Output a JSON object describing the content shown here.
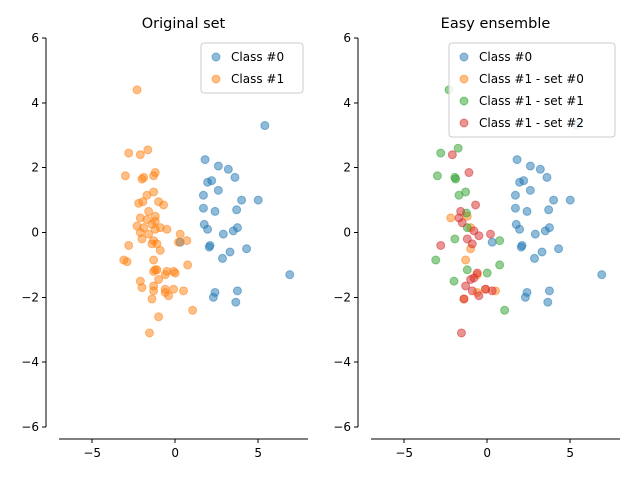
{
  "chart_data": [
    {
      "type": "scatter",
      "title": "Original set",
      "xlabel": "",
      "ylabel": "",
      "xlim": [
        -7,
        8
      ],
      "ylim": [
        -6,
        6
      ],
      "xticks": [
        -5,
        0,
        5
      ],
      "yticks": [
        -6,
        -4,
        -2,
        0,
        2,
        4,
        6
      ],
      "grid": false,
      "legend_position": "top-right",
      "series": [
        {
          "name": "Class #0",
          "color": "#1f77b4",
          "points": [
            [
              5.4,
              3.3
            ],
            [
              2.6,
              2.05
            ],
            [
              1.8,
              2.25
            ],
            [
              3.2,
              1.95
            ],
            [
              2.2,
              1.6
            ],
            [
              1.95,
              1.55
            ],
            [
              3.6,
              1.7
            ],
            [
              2.6,
              1.3
            ],
            [
              1.7,
              1.15
            ],
            [
              4.0,
              1.0
            ],
            [
              5.0,
              1.0
            ],
            [
              1.7,
              0.75
            ],
            [
              2.4,
              0.65
            ],
            [
              3.7,
              0.7
            ],
            [
              1.75,
              0.25
            ],
            [
              1.95,
              0.1
            ],
            [
              3.75,
              0.15
            ],
            [
              2.9,
              -0.05
            ],
            [
              3.5,
              0.05
            ],
            [
              0.3,
              -0.3
            ],
            [
              2.1,
              -0.4
            ],
            [
              2.05,
              -0.45
            ],
            [
              4.3,
              -0.5
            ],
            [
              3.3,
              -0.6
            ],
            [
              2.85,
              -0.8
            ],
            [
              6.9,
              -1.3
            ],
            [
              3.75,
              -1.8
            ],
            [
              2.4,
              -1.85
            ],
            [
              2.3,
              -2.0
            ],
            [
              3.65,
              -2.15
            ]
          ]
        },
        {
          "name": "Class #1",
          "color": "#ff7f0e",
          "points": [
            [
              -2.3,
              4.4
            ],
            [
              -1.65,
              2.55
            ],
            [
              -2.8,
              2.45
            ],
            [
              -2.1,
              2.4
            ],
            [
              -1.2,
              1.85
            ],
            [
              -1.3,
              1.75
            ],
            [
              -3.0,
              1.75
            ],
            [
              -2.0,
              1.65
            ],
            [
              -1.9,
              1.7
            ],
            [
              -1.3,
              1.25
            ],
            [
              -1.7,
              1.15
            ],
            [
              -1.0,
              0.95
            ],
            [
              -1.95,
              0.95
            ],
            [
              -2.2,
              0.9
            ],
            [
              -0.7,
              0.85
            ],
            [
              -1.6,
              0.65
            ],
            [
              -1.2,
              0.5
            ],
            [
              -2.1,
              0.45
            ],
            [
              -1.2,
              0.35
            ],
            [
              -1.7,
              0.4
            ],
            [
              -1.4,
              0.25
            ],
            [
              -2.3,
              0.2
            ],
            [
              -1.9,
              0.15
            ],
            [
              -1.2,
              0.1
            ],
            [
              -0.9,
              0.15
            ],
            [
              -0.5,
              0.1
            ],
            [
              -2.1,
              0.0
            ],
            [
              -1.6,
              -0.05
            ],
            [
              0.3,
              -0.05
            ],
            [
              -1.3,
              -0.25
            ],
            [
              -1.1,
              -0.35
            ],
            [
              -2.0,
              -0.2
            ],
            [
              -1.4,
              -0.35
            ],
            [
              0.7,
              -0.25
            ],
            [
              -2.8,
              -0.4
            ],
            [
              -0.9,
              -0.55
            ],
            [
              0.2,
              -0.3
            ],
            [
              -3.1,
              -0.85
            ],
            [
              -2.9,
              -0.9
            ],
            [
              -1.3,
              -0.85
            ],
            [
              -0.5,
              -1.2
            ],
            [
              -1.1,
              -1.15
            ],
            [
              -1.2,
              -1.15
            ],
            [
              -0.1,
              -1.2
            ],
            [
              -1.3,
              -1.2
            ],
            [
              0.0,
              -1.25
            ],
            [
              -0.6,
              -1.3
            ],
            [
              0.75,
              -1.0
            ],
            [
              -2.1,
              -1.5
            ],
            [
              -1.0,
              -1.45
            ],
            [
              -1.3,
              -1.65
            ],
            [
              -2.0,
              -1.7
            ],
            [
              -1.3,
              -1.8
            ],
            [
              -0.6,
              -1.75
            ],
            [
              -0.1,
              -1.75
            ],
            [
              -0.6,
              -1.85
            ],
            [
              0.5,
              -1.8
            ],
            [
              -1.4,
              -2.05
            ],
            [
              -0.4,
              -1.95
            ],
            [
              1.05,
              -2.4
            ],
            [
              -1.0,
              -2.6
            ],
            [
              -1.55,
              -3.1
            ]
          ]
        }
      ]
    },
    {
      "type": "scatter",
      "title": "Easy ensemble",
      "xlabel": "",
      "ylabel": "",
      "xlim": [
        -7,
        8
      ],
      "ylim": [
        -6,
        6
      ],
      "xticks": [
        -5,
        0,
        5
      ],
      "yticks": [
        -6,
        -4,
        -2,
        0,
        2,
        4,
        6
      ],
      "grid": false,
      "legend_position": "top-right",
      "series": [
        {
          "name": "Class #0",
          "color": "#1f77b4",
          "points": [
            [
              5.4,
              3.3
            ],
            [
              2.6,
              2.05
            ],
            [
              1.8,
              2.25
            ],
            [
              3.2,
              1.95
            ],
            [
              2.2,
              1.6
            ],
            [
              1.95,
              1.55
            ],
            [
              3.6,
              1.7
            ],
            [
              2.6,
              1.3
            ],
            [
              1.7,
              1.15
            ],
            [
              4.0,
              1.0
            ],
            [
              5.0,
              1.0
            ],
            [
              1.7,
              0.75
            ],
            [
              2.4,
              0.65
            ],
            [
              3.7,
              0.7
            ],
            [
              1.75,
              0.25
            ],
            [
              1.95,
              0.1
            ],
            [
              3.75,
              0.15
            ],
            [
              2.9,
              -0.05
            ],
            [
              3.5,
              0.05
            ],
            [
              0.3,
              -0.3
            ],
            [
              2.1,
              -0.4
            ],
            [
              2.05,
              -0.45
            ],
            [
              4.3,
              -0.5
            ],
            [
              3.3,
              -0.6
            ],
            [
              2.85,
              -0.8
            ],
            [
              6.9,
              -1.3
            ],
            [
              3.75,
              -1.8
            ],
            [
              2.4,
              -1.85
            ],
            [
              2.3,
              -2.0
            ],
            [
              3.65,
              -2.15
            ]
          ]
        },
        {
          "name": "Class #1 - set #0",
          "color": "#ff7f0e",
          "points": [
            [
              -2.2,
              0.45
            ],
            [
              -1.0,
              0.15
            ],
            [
              -1.3,
              -0.85
            ],
            [
              -1.0,
              -0.5
            ],
            [
              -0.6,
              -1.85
            ],
            [
              -1.4,
              -2.05
            ],
            [
              -0.1,
              -1.75
            ],
            [
              0.5,
              -1.8
            ],
            [
              -1.2,
              0.5
            ],
            [
              -0.6,
              -1.3
            ]
          ]
        },
        {
          "name": "Class #1 - set #1",
          "color": "#2ca02c",
          "points": [
            [
              -2.3,
              4.4
            ],
            [
              -1.75,
              2.6
            ],
            [
              -2.8,
              2.45
            ],
            [
              -1.95,
              1.7
            ],
            [
              -1.9,
              1.65
            ],
            [
              -3.0,
              1.75
            ],
            [
              -1.7,
              1.15
            ],
            [
              -1.3,
              1.25
            ],
            [
              -1.25,
              0.6
            ],
            [
              -1.2,
              0.15
            ],
            [
              -1.95,
              -0.2
            ],
            [
              -3.1,
              -0.85
            ],
            [
              -2.0,
              -1.5
            ],
            [
              0.75,
              -0.25
            ],
            [
              0.75,
              -1.0
            ],
            [
              -1.2,
              -1.15
            ],
            [
              1.05,
              -2.4
            ],
            [
              0.0,
              -1.25
            ]
          ]
        },
        {
          "name": "Class #1 - set #2",
          "color": "#d62728",
          "points": [
            [
              -2.1,
              2.4
            ],
            [
              -1.1,
              1.85
            ],
            [
              -0.7,
              0.85
            ],
            [
              -1.6,
              0.65
            ],
            [
              -1.7,
              0.45
            ],
            [
              -1.5,
              0.3
            ],
            [
              -1.2,
              -0.2
            ],
            [
              -0.9,
              -0.35
            ],
            [
              -2.8,
              -0.4
            ],
            [
              -0.8,
              0.05
            ],
            [
              -0.5,
              -0.1
            ],
            [
              0.2,
              -0.05
            ],
            [
              -0.6,
              -1.25
            ],
            [
              -0.8,
              -1.4
            ],
            [
              -1.0,
              -1.45
            ],
            [
              -1.3,
              -1.65
            ],
            [
              -0.9,
              -1.8
            ],
            [
              -0.5,
              -1.95
            ],
            [
              0.3,
              -1.8
            ],
            [
              -1.55,
              -3.1
            ],
            [
              -1.4,
              -2.05
            ],
            [
              -0.1,
              -1.75
            ]
          ]
        }
      ]
    }
  ]
}
